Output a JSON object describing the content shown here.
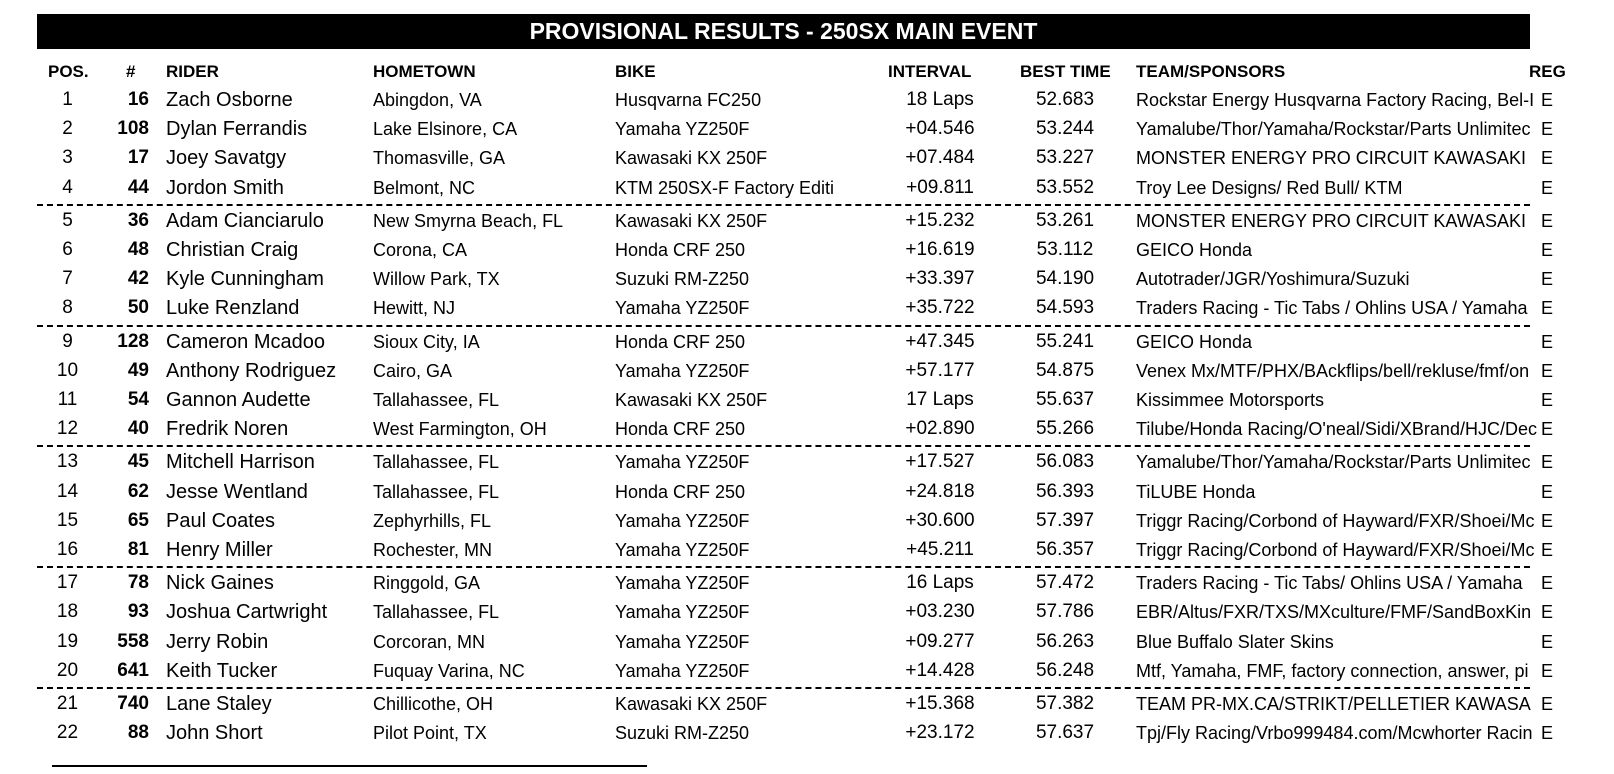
{
  "title": "PROVISIONAL RESULTS - 250SX MAIN EVENT",
  "columns": {
    "pos": "POS.",
    "num": "#",
    "rider": "RIDER",
    "hometown": "HOMETOWN",
    "bike": "BIKE",
    "interval": "INTERVAL",
    "best_time": "BEST TIME",
    "team": "TEAM/SPONSORS",
    "reg": "REG"
  },
  "rows": [
    {
      "pos": "1",
      "num": "16",
      "rider": "Zach Osborne",
      "hometown": "Abingdon, VA",
      "bike": "Husqvarna FC250",
      "interval": "18 Laps",
      "best_time": "52.683",
      "team": "Rockstar Energy Husqvarna Factory Racing, Bel-I",
      "reg": "E"
    },
    {
      "pos": "2",
      "num": "108",
      "rider": "Dylan Ferrandis",
      "hometown": "Lake Elsinore, CA",
      "bike": "Yamaha YZ250F",
      "interval": "+04.546",
      "best_time": "53.244",
      "team": "Yamalube/Thor/Yamaha/Rockstar/Parts Unlimitec",
      "reg": "E"
    },
    {
      "pos": "3",
      "num": "17",
      "rider": "Joey Savatgy",
      "hometown": "Thomasville, GA",
      "bike": "Kawasaki KX 250F",
      "interval": "+07.484",
      "best_time": "53.227",
      "team": "MONSTER ENERGY PRO CIRCUIT KAWASAKI",
      "reg": "E"
    },
    {
      "pos": "4",
      "num": "44",
      "rider": "Jordon Smith",
      "hometown": "Belmont, NC",
      "bike": "KTM 250SX-F Factory Editi",
      "interval": "+09.811",
      "best_time": "53.552",
      "team": "Troy Lee Designs/ Red Bull/ KTM",
      "reg": "E"
    },
    {
      "pos": "5",
      "num": "36",
      "rider": "Adam Cianciarulo",
      "hometown": "New Smyrna Beach, FL",
      "bike": "Kawasaki KX 250F",
      "interval": "+15.232",
      "best_time": "53.261",
      "team": "MONSTER ENERGY PRO CIRCUIT KAWASAKI",
      "reg": "E"
    },
    {
      "pos": "6",
      "num": "48",
      "rider": "Christian Craig",
      "hometown": "Corona, CA",
      "bike": "Honda CRF 250",
      "interval": "+16.619",
      "best_time": "53.112",
      "team": "GEICO Honda",
      "reg": "E"
    },
    {
      "pos": "7",
      "num": "42",
      "rider": "Kyle Cunningham",
      "hometown": "Willow Park, TX",
      "bike": "Suzuki RM-Z250",
      "interval": "+33.397",
      "best_time": "54.190",
      "team": "Autotrader/JGR/Yoshimura/Suzuki",
      "reg": "E"
    },
    {
      "pos": "8",
      "num": "50",
      "rider": "Luke Renzland",
      "hometown": "Hewitt, NJ",
      "bike": "Yamaha YZ250F",
      "interval": "+35.722",
      "best_time": "54.593",
      "team": "Traders Racing - Tic Tabs / Ohlins USA / Yamaha",
      "reg": "E"
    },
    {
      "pos": "9",
      "num": "128",
      "rider": "Cameron Mcadoo",
      "hometown": "Sioux City, IA",
      "bike": "Honda CRF 250",
      "interval": "+47.345",
      "best_time": "55.241",
      "team": "GEICO Honda",
      "reg": "E"
    },
    {
      "pos": "10",
      "num": "49",
      "rider": "Anthony Rodriguez",
      "hometown": "Cairo, GA",
      "bike": "Yamaha YZ250F",
      "interval": "+57.177",
      "best_time": "54.875",
      "team": "Venex Mx/MTF/PHX/BAckflips/bell/rekluse/fmf/on",
      "reg": "E"
    },
    {
      "pos": "11",
      "num": "54",
      "rider": "Gannon Audette",
      "hometown": "Tallahassee, FL",
      "bike": "Kawasaki KX 250F",
      "interval": "17 Laps",
      "best_time": "55.637",
      "team": "Kissimmee Motorsports",
      "reg": "E"
    },
    {
      "pos": "12",
      "num": "40",
      "rider": "Fredrik Noren",
      "hometown": "West Farmington, OH",
      "bike": "Honda CRF 250",
      "interval": "+02.890",
      "best_time": "55.266",
      "team": "Tilube/Honda Racing/O'neal/Sidi/XBrand/HJC/Dec",
      "reg": "E"
    },
    {
      "pos": "13",
      "num": "45",
      "rider": "Mitchell Harrison",
      "hometown": "Tallahassee, FL",
      "bike": "Yamaha YZ250F",
      "interval": "+17.527",
      "best_time": "56.083",
      "team": "Yamalube/Thor/Yamaha/Rockstar/Parts Unlimitec",
      "reg": "E"
    },
    {
      "pos": "14",
      "num": "62",
      "rider": "Jesse Wentland",
      "hometown": "Tallahassee, FL",
      "bike": "Honda CRF 250",
      "interval": "+24.818",
      "best_time": "56.393",
      "team": "TiLUBE Honda",
      "reg": "E"
    },
    {
      "pos": "15",
      "num": "65",
      "rider": "Paul Coates",
      "hometown": "Zephyrhills, FL",
      "bike": "Yamaha YZ250F",
      "interval": "+30.600",
      "best_time": "57.397",
      "team": "Triggr Racing/Corbond of Hayward/FXR/Shoei/Mc",
      "reg": "E"
    },
    {
      "pos": "16",
      "num": "81",
      "rider": "Henry Miller",
      "hometown": "Rochester, MN",
      "bike": "Yamaha YZ250F",
      "interval": "+45.211",
      "best_time": "56.357",
      "team": "Triggr Racing/Corbond of Hayward/FXR/Shoei/Mc",
      "reg": "E"
    },
    {
      "pos": "17",
      "num": "78",
      "rider": "Nick Gaines",
      "hometown": "Ringgold, GA",
      "bike": "Yamaha YZ250F",
      "interval": "16 Laps",
      "best_time": "57.472",
      "team": "Traders Racing - Tic Tabs/ Ohlins USA / Yamaha",
      "reg": "E"
    },
    {
      "pos": "18",
      "num": "93",
      "rider": "Joshua Cartwright",
      "hometown": "Tallahassee, FL",
      "bike": "Yamaha YZ250F",
      "interval": "+03.230",
      "best_time": "57.786",
      "team": "EBR/Altus/FXR/TXS/MXculture/FMF/SandBoxKin",
      "reg": "E"
    },
    {
      "pos": "19",
      "num": "558",
      "rider": "Jerry Robin",
      "hometown": "Corcoran, MN",
      "bike": "Yamaha YZ250F",
      "interval": "+09.277",
      "best_time": "56.263",
      "team": "Blue Buffalo Slater Skins",
      "reg": "E"
    },
    {
      "pos": "20",
      "num": "641",
      "rider": "Keith Tucker",
      "hometown": "Fuquay Varina, NC",
      "bike": "Yamaha YZ250F",
      "interval": "+14.428",
      "best_time": "56.248",
      "team": "Mtf, Yamaha, FMF, factory connection, answer, pi",
      "reg": "E"
    },
    {
      "pos": "21",
      "num": "740",
      "rider": "Lane Staley",
      "hometown": "Chillicothe, OH",
      "bike": "Kawasaki KX 250F",
      "interval": "+15.368",
      "best_time": "57.382",
      "team": "TEAM PR-MX.CA/STRIKT/PELLETIER KAWASA",
      "reg": "E"
    },
    {
      "pos": "22",
      "num": "88",
      "rider": "John Short",
      "hometown": "Pilot Point, TX",
      "bike": "Suzuki RM-Z250",
      "interval": "+23.172",
      "best_time": "57.637",
      "team": "Tpj/Fly Racing/Vrbo999484.com/Mcwhorter Racin",
      "reg": "E"
    }
  ]
}
